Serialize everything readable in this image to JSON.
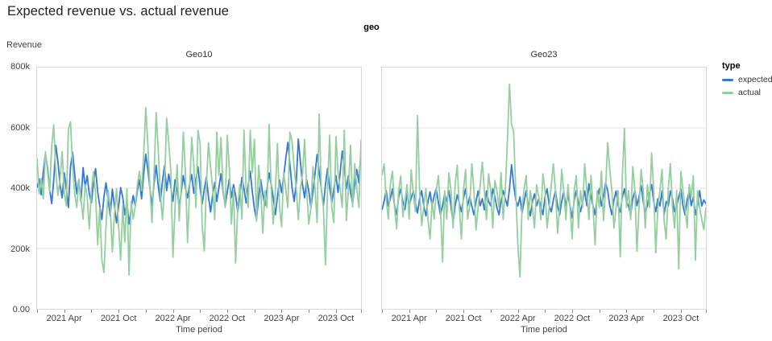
{
  "page": {
    "title": "Expected revenue vs. actual revenue"
  },
  "colors": {
    "expected": "#3478dd",
    "actual": "#93cf9f",
    "grid": "#e3e3e3",
    "panel_border": "#d8d8d8",
    "tick_text": "#424242"
  },
  "legend": {
    "title": "type",
    "items": [
      {
        "label": "expected",
        "color": "#3478dd"
      },
      {
        "label": "actual",
        "color": "#93cf9f"
      }
    ]
  },
  "chart_data": {
    "type": "line",
    "title": "Expected revenue vs. actual revenue",
    "facet_field": "geo",
    "xlabel": "Time period",
    "ylabel": "Revenue",
    "ylim": [
      0,
      800
    ],
    "values_unit": "thousands (k) of revenue, weekly points Jan 2021 - Dec 2023",
    "y": {
      "label": "Revenue",
      "tick_labels": [
        "800k",
        "600k",
        "400k",
        "200k",
        "0.00"
      ],
      "tick_values": [
        800,
        600,
        400,
        200,
        0
      ],
      "grid_values": [
        600,
        400,
        200
      ]
    },
    "x": {
      "label": "Time period",
      "unit": "week index (0 = early Jan 2021)",
      "n_points": 156,
      "all_tick_weeks": [
        0,
        13,
        26,
        39,
        52,
        65,
        78,
        91,
        104,
        117,
        130,
        143,
        155
      ],
      "tick_weeks": [
        13,
        39,
        65,
        91,
        117,
        143
      ],
      "tick_labels": [
        "2021 Apr",
        "2021 Oct",
        "2022 Apr",
        "2022 Oct",
        "2023 Apr",
        "2023 Oct"
      ]
    },
    "facets": [
      {
        "title": "Geo10",
        "series": [
          {
            "name": "expected",
            "values": [
              402,
              431,
              378,
              456,
              512,
              468,
              395,
              349,
              428,
              542,
              487,
              412,
              368,
              451,
              398,
              336,
              472,
              519,
              447,
              381,
              429,
              356,
              468,
              403,
              442,
              381,
              352,
              417,
              465,
              388,
              341,
              296,
              372,
              418,
              361,
              309,
              397,
              342,
              285,
              336,
              402,
              371,
              312,
              356,
              281,
              330,
              376,
              341,
              392,
              428,
              365,
              447,
              513,
              462,
              398,
              342,
              416,
              476,
              407,
              356,
              423,
              475,
              392,
              447,
              405,
              356,
              428,
              394,
              336,
              391,
              442,
              401,
              368,
              412,
              445,
              383,
              429,
              471,
              402,
              348,
              396,
              437,
              372,
              321,
              377,
              419,
              356,
              402,
              448,
              391,
              341,
              387,
              430,
              369,
              412,
              375,
              322,
              378,
              436,
              398,
              351,
              407,
              456,
              388,
              332,
              296,
              367,
              428,
              381,
              342,
              397,
              451,
              412,
              368,
              312,
              372,
              427,
              385,
              439,
              498,
              552,
              478,
              402,
              356,
              418,
              563,
              487,
              412,
              368,
              428,
              391,
              336,
              389,
              447,
              512,
              455,
              398,
              342,
              412,
              466,
              403,
              351,
              397,
              442,
              386,
              451,
              523,
              467,
              398,
              441,
              388,
              348,
              412,
              462,
              417,
              528
            ]
          },
          {
            "name": "actual",
            "values": [
              498,
              381,
              432,
              365,
              521,
              456,
              388,
              542,
              610,
              451,
              376,
              428,
              521,
              386,
              342,
              596,
              620,
              472,
              381,
              336,
              428,
              365,
              298,
              412,
              372,
              265,
              392,
              455,
              381,
              212,
              336,
              162,
              121,
              276,
              392,
              336,
              188,
              312,
              398,
              276,
              162,
              342,
              221,
              398,
              112,
              356,
              298,
              342,
              412,
              456,
              392,
              512,
              668,
              542,
              398,
              286,
              448,
              651,
              526,
              381,
              296,
              412,
              632,
              551,
              456,
              171,
              336,
              478,
              292,
              412,
              586,
              451,
              220,
              398,
              568,
              476,
              336,
              592,
              548,
              276,
              192,
              412,
              551,
              471,
              398,
              296,
              586,
              442,
              568,
              398,
              336,
              576,
              462,
              281,
              398,
              152,
              336,
              412,
              298,
              592,
              398,
              336,
              592,
              451,
              562,
              291,
              476,
              398,
              251,
              392,
              336,
              612,
              398,
              281,
              392,
              548,
              336,
              272,
              451,
              398,
              336,
              586,
              556,
              471,
              398,
              296,
              398,
              448,
              562,
              392,
              281,
              336,
              471,
              398,
              286,
              646,
              392,
              336,
              146,
              398,
              576,
              336,
              286,
              571,
              451,
              398,
              336,
              592,
              292,
              398,
              542,
              338,
              481,
              398,
              336,
              561
            ]
          }
        ]
      },
      {
        "title": "Geo23",
        "series": [
          {
            "name": "expected",
            "values": [
              328,
              356,
              392,
              341,
              365,
              398,
              342,
              312,
              371,
              398,
              356,
              329,
              381,
              342,
              368,
              391,
              352,
              318,
              365,
              392,
              341,
              308,
              356,
              388,
              342,
              376,
              398,
              352,
              312,
              342,
              381,
              356,
              392,
              341,
              286,
              342,
              378,
              351,
              322,
              365,
              398,
              342,
              372,
              341,
              312,
              356,
              391,
              342,
              365,
              328,
              391,
              356,
              342,
              398,
              371,
              336,
              312,
              356,
              392,
              365,
              341,
              398,
              478,
              412,
              362,
              341,
              371,
              318,
              356,
              392,
              341,
              308,
              356,
              381,
              342,
              365,
              341,
              312,
              371,
              398,
              342,
              322,
              361,
              391,
              342,
              312,
              356,
              388,
              342,
              376,
              341,
              302,
              361,
              392,
              352,
              322,
              356,
              391,
              342,
              415,
              371,
              342,
              312,
              365,
              398,
              341,
              372,
              418,
              392,
              342,
              312,
              361,
              391,
              342,
              321,
              371,
              398,
              356,
              341,
              312,
              365,
              391,
              342,
              372,
              408,
              356,
              322,
              342,
              381,
              412,
              356,
              322,
              365,
              341,
              391,
              312,
              356,
              342,
              391,
              365,
              322,
              342,
              371,
              398,
              342,
              312,
              361,
              391,
              342,
              371,
              312,
              342,
              392,
              341,
              361,
              348
            ]
          },
          {
            "name": "actual",
            "values": [
              442,
              481,
              366,
              298,
              412,
              456,
              338,
              265,
              392,
              441,
              306,
              356,
              412,
              298,
              461,
              381,
              322,
              641,
              392,
              276,
              342,
              398,
              296,
              232,
              356,
              298,
              392,
              442,
              336,
              155,
              392,
              298,
              451,
              392,
              268,
              412,
              476,
              336,
              232,
              392,
              462,
              298,
              342,
              481,
              392,
              262,
              336,
              412,
              486,
              392,
              296,
              448,
              392,
              268,
              426,
              392,
              336,
              452,
              296,
              392,
              551,
              745,
              612,
              586,
              392,
              212,
              106,
              336,
              398,
              442,
              296,
              392,
              336,
              268,
              412,
              372,
              296,
              448,
              392,
              268,
              336,
              412,
              481,
              392,
              251,
              336,
              462,
              392,
              296,
              412,
              336,
              232,
              392,
              442,
              268,
              392,
              336,
              481,
              392,
              296,
              442,
              336,
              212,
              392,
              336,
              456,
              292,
              398,
              551,
              462,
              392,
              268,
              336,
              392,
              172,
              442,
              598,
              336,
              392,
              296,
              472,
              392,
              191,
              336,
              462,
              392,
              268,
              412,
              336,
              517,
              392,
              186,
              336,
              392,
              462,
              292,
              232,
              398,
              481,
              336,
              268,
              392,
              132,
              456,
              392,
              336,
              268,
              412,
              372,
              442,
              162,
              392,
              336,
              298,
              262,
              336
            ]
          }
        ]
      }
    ]
  }
}
